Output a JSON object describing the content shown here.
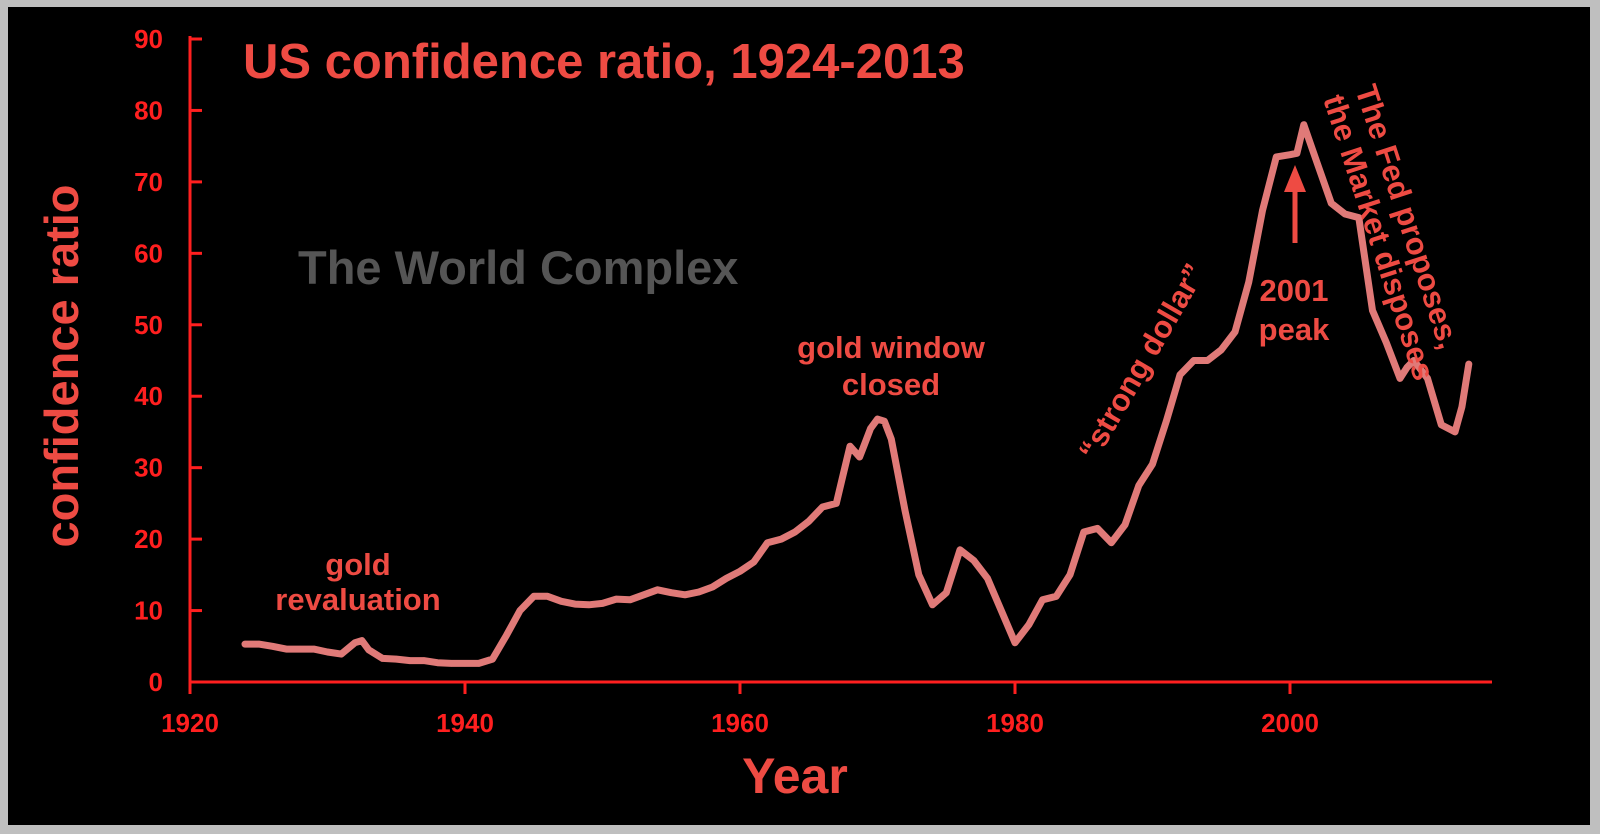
{
  "chart_data": {
    "type": "line",
    "title": "US confidence ratio, 1924-2013",
    "xlabel": "Year",
    "ylabel": "confidence ratio",
    "xlim": [
      1920,
      2015
    ],
    "ylim": [
      0,
      90
    ],
    "x_ticks": [
      "1920",
      "1940",
      "1960",
      "1980",
      "2000"
    ],
    "y_ticks": [
      "0",
      "10",
      "20",
      "30",
      "40",
      "50",
      "60",
      "70",
      "80",
      "90"
    ],
    "grid": false,
    "series": [
      {
        "x": [
          1924,
          1925,
          1926,
          1927,
          1928,
          1929,
          1930,
          1931,
          1932,
          1932.5,
          1933,
          1934,
          1935,
          1936,
          1937,
          1938,
          1939,
          1940,
          1941,
          1942,
          1943,
          1944,
          1945,
          1946,
          1947,
          1948,
          1949,
          1950,
          1951,
          1952,
          1953,
          1954,
          1955,
          1956,
          1957,
          1958,
          1959,
          1960,
          1961,
          1962,
          1963,
          1964,
          1965,
          1966,
          1967,
          1967.5,
          1968,
          1968.7,
          1969,
          1969.5,
          1970,
          1970.5,
          1971,
          1972,
          1973,
          1974,
          1975,
          1976,
          1977,
          1978,
          1979,
          1980,
          1981,
          1982,
          1983,
          1984,
          1985,
          1986,
          1987,
          1988,
          1989,
          1990,
          1991,
          1992,
          1993,
          1994,
          1995,
          1996,
          1997,
          1998,
          1999,
          2000,
          2000.5,
          2001,
          2002,
          2003,
          2004,
          2005,
          2006,
          2007,
          2008,
          2008.5,
          2009,
          2010,
          2011,
          2012,
          2012.5,
          2013
        ],
        "values": [
          5.3,
          5.3,
          5.0,
          4.6,
          4.6,
          4.6,
          4.2,
          3.9,
          5.5,
          5.8,
          4.5,
          3.3,
          3.2,
          3.0,
          3.0,
          2.7,
          2.6,
          2.6,
          2.6,
          3.2,
          6.5,
          10.0,
          12.0,
          12.0,
          11.3,
          10.9,
          10.8,
          11.0,
          11.6,
          11.5,
          12.2,
          12.9,
          12.5,
          12.2,
          12.6,
          13.3,
          14.5,
          15.5,
          16.8,
          19.5,
          20.0,
          21.0,
          22.5,
          24.5,
          25.0,
          29.0,
          33.0,
          31.5,
          33.0,
          35.5,
          36.8,
          36.5,
          34.0,
          24.0,
          15.0,
          10.8,
          12.5,
          18.5,
          17.0,
          14.5,
          10.0,
          5.5,
          8.0,
          11.5,
          12.0,
          15.0,
          21.0,
          21.5,
          19.5,
          22.0,
          27.5,
          30.5,
          36.5,
          43.0,
          45.0,
          45.0,
          46.5,
          49.0,
          56.0,
          66.0,
          73.5,
          73.8,
          74.0,
          78.0,
          72.5,
          67.0,
          65.5,
          65.0,
          52.0,
          47.5,
          42.5,
          44.0,
          45.0,
          42.5,
          36.0,
          35.0,
          38.5,
          44.5
        ]
      }
    ],
    "annotations": {
      "gold_revaluation_line1": "gold",
      "gold_revaluation_line2": "revaluation",
      "gold_window_line1": "gold window",
      "gold_window_line2": "closed",
      "strong_dollar": "“strong dollar”",
      "peak_line1": "2001",
      "peak_line2": "peak",
      "fed_line1": "The Fed proposes,",
      "fed_line2": "the Market disposes"
    },
    "watermark": "The World Complex",
    "colors": {
      "background": "#000000",
      "line": "#e07a78",
      "axis": "#ff1f1f",
      "text": "#ee4b43",
      "watermark": "#555555"
    }
  }
}
